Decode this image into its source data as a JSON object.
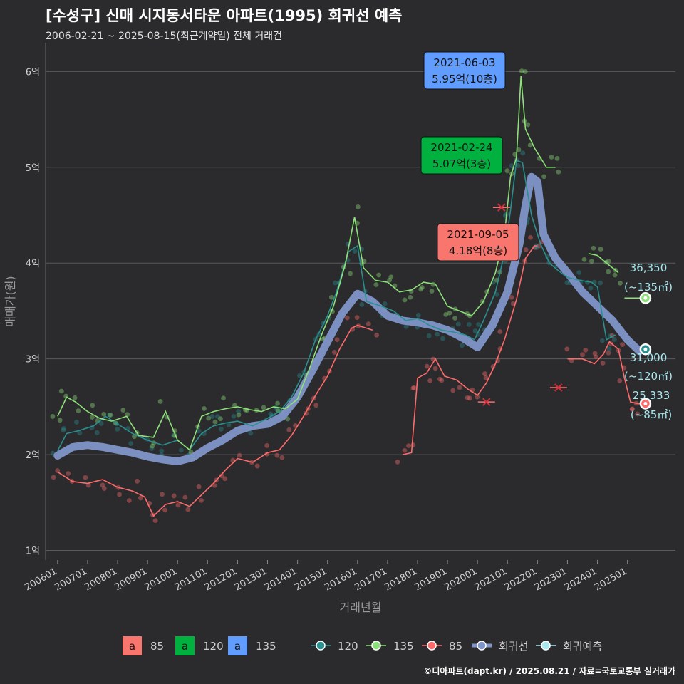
{
  "title": "[수성구] 신매 시지동서타운 아파트(1995) 회귀선 예측",
  "subtitle": "2006-02-21 ~ 2025-08-15(최근계약일) 전체 거래건",
  "credit": "©디아파트(dapt.kr) / 2025.08.21 / 자료=국토교통부 실거래가",
  "colors": {
    "bg": "#2b2b2d",
    "s85": "#ff6b6b",
    "s120": "#2a8f8f",
    "s135": "#8ee07a",
    "reg": "#7f95c9",
    "pred": "#a9e8ef",
    "box85": "#f8766d",
    "box120": "#00b140",
    "box135": "#619cff"
  },
  "chart_data": {
    "type": "line",
    "xlabel": "거래년월",
    "ylabel": "매매가(원)",
    "ylim": [
      0.9,
      6.3
    ],
    "yticks": [
      {
        "v": 1,
        "label": "1억"
      },
      {
        "v": 2,
        "label": "2억"
      },
      {
        "v": 3,
        "label": "3억"
      },
      {
        "v": 4,
        "label": "4억"
      },
      {
        "v": 5,
        "label": "5억"
      },
      {
        "v": 6,
        "label": "6억"
      }
    ],
    "xticks": [
      "200601",
      "200701",
      "200801",
      "200901",
      "201001",
      "201101",
      "201201",
      "201301",
      "201401",
      "201501",
      "201601",
      "201701",
      "201801",
      "201901",
      "202001",
      "202101",
      "202201",
      "202301",
      "202401",
      "202501"
    ],
    "series": [
      {
        "name": "85",
        "points": [
          [
            2006.0,
            1.82
          ],
          [
            2006.5,
            1.72
          ],
          [
            2007.0,
            1.7
          ],
          [
            2007.5,
            1.74
          ],
          [
            2008.0,
            1.66
          ],
          [
            2008.5,
            1.62
          ],
          [
            2008.9,
            1.56
          ],
          [
            2009.2,
            1.36
          ],
          [
            2009.6,
            1.48
          ],
          [
            2010.0,
            1.51
          ],
          [
            2010.4,
            1.46
          ],
          [
            2010.8,
            1.58
          ],
          [
            2011.2,
            1.7
          ],
          [
            2011.6,
            1.84
          ],
          [
            2012.0,
            1.96
          ],
          [
            2012.5,
            1.92
          ],
          [
            2013.0,
            2.02
          ],
          [
            2013.4,
            2.05
          ],
          [
            2013.8,
            2.2
          ],
          [
            2014.2,
            2.4
          ],
          [
            2014.6,
            2.62
          ],
          [
            2015.0,
            2.82
          ],
          [
            2015.4,
            3.1
          ],
          [
            2015.8,
            3.32
          ],
          [
            2016.0,
            3.35
          ],
          [
            2016.5,
            3.3
          ],
          [
            2016.7,
            null
          ],
          [
            2017.5,
            2.0
          ],
          [
            2017.8,
            2.02
          ],
          [
            2018.0,
            2.8
          ],
          [
            2018.3,
            2.85
          ],
          [
            2018.6,
            3.0
          ],
          [
            2018.9,
            2.82
          ],
          [
            2019.3,
            2.78
          ],
          [
            2019.7,
            2.68
          ],
          [
            2020.0,
            2.62
          ],
          [
            2020.3,
            2.75
          ],
          [
            2020.6,
            2.95
          ],
          [
            2020.9,
            3.2
          ],
          [
            2021.3,
            3.62
          ],
          [
            2021.6,
            4.05
          ],
          [
            2021.9,
            4.18
          ],
          [
            2022.0,
            4.18
          ],
          [
            2022.2,
            null
          ],
          [
            2023.0,
            3.0
          ],
          [
            2023.5,
            3.0
          ],
          [
            2023.9,
            2.95
          ],
          [
            2024.2,
            3.05
          ],
          [
            2024.4,
            3.18
          ],
          [
            2024.7,
            3.1
          ],
          [
            2024.9,
            2.8
          ],
          [
            2025.1,
            2.55
          ],
          [
            2025.4,
            2.53
          ]
        ]
      },
      {
        "name": "120",
        "points": [
          [
            2006.0,
            2.04
          ],
          [
            2006.3,
            2.22
          ],
          [
            2006.7,
            2.25
          ],
          [
            2007.2,
            2.3
          ],
          [
            2007.6,
            2.4
          ],
          [
            2008.0,
            2.32
          ],
          [
            2008.5,
            2.22
          ],
          [
            2009.0,
            2.15
          ],
          [
            2009.5,
            2.1
          ],
          [
            2010.0,
            2.15
          ],
          [
            2010.4,
            2.05
          ],
          [
            2010.8,
            2.22
          ],
          [
            2011.2,
            2.3
          ],
          [
            2011.6,
            2.33
          ],
          [
            2012.0,
            2.35
          ],
          [
            2012.5,
            2.3
          ],
          [
            2013.0,
            2.38
          ],
          [
            2013.4,
            2.45
          ],
          [
            2013.8,
            2.6
          ],
          [
            2014.2,
            2.85
          ],
          [
            2014.6,
            3.2
          ],
          [
            2015.0,
            3.45
          ],
          [
            2015.3,
            3.7
          ],
          [
            2015.7,
            4.12
          ],
          [
            2016.0,
            4.18
          ],
          [
            2016.3,
            3.6
          ],
          [
            2016.8,
            3.55
          ],
          [
            2017.2,
            3.5
          ],
          [
            2017.6,
            3.4
          ],
          [
            2018.0,
            3.42
          ],
          [
            2018.4,
            3.35
          ],
          [
            2018.8,
            3.3
          ],
          [
            2019.2,
            3.28
          ],
          [
            2019.6,
            3.25
          ],
          [
            2019.9,
            3.2
          ],
          [
            2020.2,
            3.4
          ],
          [
            2020.6,
            3.7
          ],
          [
            2020.9,
            4.1
          ],
          [
            2021.1,
            4.55
          ],
          [
            2021.3,
            5.07
          ],
          [
            2021.5,
            5.05
          ],
          [
            2021.8,
            4.5
          ],
          [
            2022.1,
            4.2
          ],
          [
            2022.4,
            4.0
          ],
          [
            2022.7,
            3.92
          ],
          [
            2023.0,
            3.85
          ],
          [
            2023.4,
            3.82
          ],
          [
            2023.8,
            3.8
          ],
          [
            2024.0,
            3.75
          ],
          [
            2024.3,
            3.2
          ],
          [
            2024.6,
            3.25
          ]
        ]
      },
      {
        "name": "135",
        "points": [
          [
            2006.0,
            2.4
          ],
          [
            2006.3,
            2.6
          ],
          [
            2006.6,
            2.55
          ],
          [
            2007.0,
            2.45
          ],
          [
            2007.4,
            2.38
          ],
          [
            2007.8,
            2.35
          ],
          [
            2008.3,
            2.4
          ],
          [
            2008.7,
            2.2
          ],
          [
            2009.2,
            2.18
          ],
          [
            2009.6,
            2.45
          ],
          [
            2010.0,
            2.15
          ],
          [
            2010.4,
            2.05
          ],
          [
            2010.8,
            2.4
          ],
          [
            2011.2,
            2.45
          ],
          [
            2011.6,
            2.48
          ],
          [
            2012.0,
            2.5
          ],
          [
            2012.4,
            2.47
          ],
          [
            2012.8,
            2.45
          ],
          [
            2013.2,
            2.5
          ],
          [
            2013.6,
            2.48
          ],
          [
            2014.0,
            2.58
          ],
          [
            2014.4,
            2.9
          ],
          [
            2014.8,
            3.25
          ],
          [
            2015.2,
            3.55
          ],
          [
            2015.6,
            4.0
          ],
          [
            2015.9,
            4.48
          ],
          [
            2016.2,
            3.95
          ],
          [
            2016.6,
            3.82
          ],
          [
            2017.0,
            3.8
          ],
          [
            2017.4,
            3.7
          ],
          [
            2017.8,
            3.72
          ],
          [
            2018.2,
            3.8
          ],
          [
            2018.6,
            3.78
          ],
          [
            2019.0,
            3.55
          ],
          [
            2019.4,
            3.5
          ],
          [
            2019.8,
            3.45
          ],
          [
            2020.2,
            3.6
          ],
          [
            2020.6,
            3.9
          ],
          [
            2020.9,
            4.3
          ],
          [
            2021.1,
            4.9
          ],
          [
            2021.3,
            5.1
          ],
          [
            2021.45,
            5.95
          ],
          [
            2021.6,
            5.4
          ],
          [
            2021.9,
            5.2
          ],
          [
            2022.3,
            5.0
          ],
          [
            2022.6,
            5.0
          ],
          [
            2022.7,
            null
          ],
          [
            2023.7,
            4.1
          ],
          [
            2024.0,
            4.08
          ],
          [
            2024.3,
            4.0
          ],
          [
            2024.5,
            3.95
          ],
          [
            2024.7,
            3.9
          ]
        ]
      },
      {
        "name": "회귀선",
        "points": [
          [
            2006.0,
            1.99
          ],
          [
            2006.5,
            2.08
          ],
          [
            2007.0,
            2.1
          ],
          [
            2007.5,
            2.08
          ],
          [
            2008.0,
            2.05
          ],
          [
            2008.5,
            2.02
          ],
          [
            2009.0,
            1.98
          ],
          [
            2009.5,
            1.95
          ],
          [
            2010.0,
            1.93
          ],
          [
            2010.5,
            1.97
          ],
          [
            2011.0,
            2.07
          ],
          [
            2011.5,
            2.15
          ],
          [
            2012.0,
            2.25
          ],
          [
            2012.5,
            2.3
          ],
          [
            2013.0,
            2.32
          ],
          [
            2013.5,
            2.4
          ],
          [
            2014.0,
            2.6
          ],
          [
            2014.5,
            2.88
          ],
          [
            2015.0,
            3.18
          ],
          [
            2015.5,
            3.48
          ],
          [
            2016.0,
            3.68
          ],
          [
            2016.5,
            3.6
          ],
          [
            2017.0,
            3.45
          ],
          [
            2017.5,
            3.4
          ],
          [
            2018.0,
            3.38
          ],
          [
            2018.5,
            3.35
          ],
          [
            2019.0,
            3.3
          ],
          [
            2019.5,
            3.22
          ],
          [
            2020.0,
            3.12
          ],
          [
            2020.5,
            3.35
          ],
          [
            2021.0,
            3.7
          ],
          [
            2021.4,
            4.2
          ],
          [
            2021.6,
            4.6
          ],
          [
            2021.8,
            4.9
          ],
          [
            2022.0,
            4.85
          ],
          [
            2022.2,
            4.3
          ],
          [
            2022.6,
            4.05
          ],
          [
            2023.0,
            3.9
          ],
          [
            2023.5,
            3.7
          ],
          [
            2024.0,
            3.55
          ],
          [
            2024.5,
            3.4
          ],
          [
            2025.0,
            3.2
          ],
          [
            2025.4,
            3.08
          ]
        ]
      }
    ],
    "predictions": [
      {
        "name": "135",
        "x": 2025.6,
        "y": 3.635,
        "value": "36,350",
        "area": "(~135㎡)"
      },
      {
        "name": "120",
        "x": 2025.6,
        "y": 3.1,
        "value": "31,000",
        "area": "(~120㎡)"
      },
      {
        "name": "85",
        "x": 2025.6,
        "y": 2.533,
        "value": "25,333",
        "area": "(~85㎡)"
      }
    ],
    "callouts": [
      {
        "series": "135",
        "date": "2021-06-03",
        "price": "5.95억(10층)"
      },
      {
        "series": "120",
        "date": "2021-02-24",
        "price": "5.07억(3층)"
      },
      {
        "series": "85",
        "date": "2021-09-05",
        "price": "4.18억(8층)"
      }
    ],
    "markers_x": [
      {
        "series": "85",
        "x": 2022.7,
        "y": 2.7
      },
      {
        "series": "85",
        "x": 2020.3,
        "y": 2.55
      },
      {
        "series": "85",
        "x": 2020.8,
        "y": 4.58
      }
    ],
    "legend_boxes": [
      {
        "name": "85",
        "letter": "a"
      },
      {
        "name": "120",
        "letter": "a"
      },
      {
        "name": "135",
        "letter": "a"
      }
    ],
    "legend_lines": [
      "120",
      "135",
      "85",
      "회귀선",
      "회귀예측"
    ]
  }
}
